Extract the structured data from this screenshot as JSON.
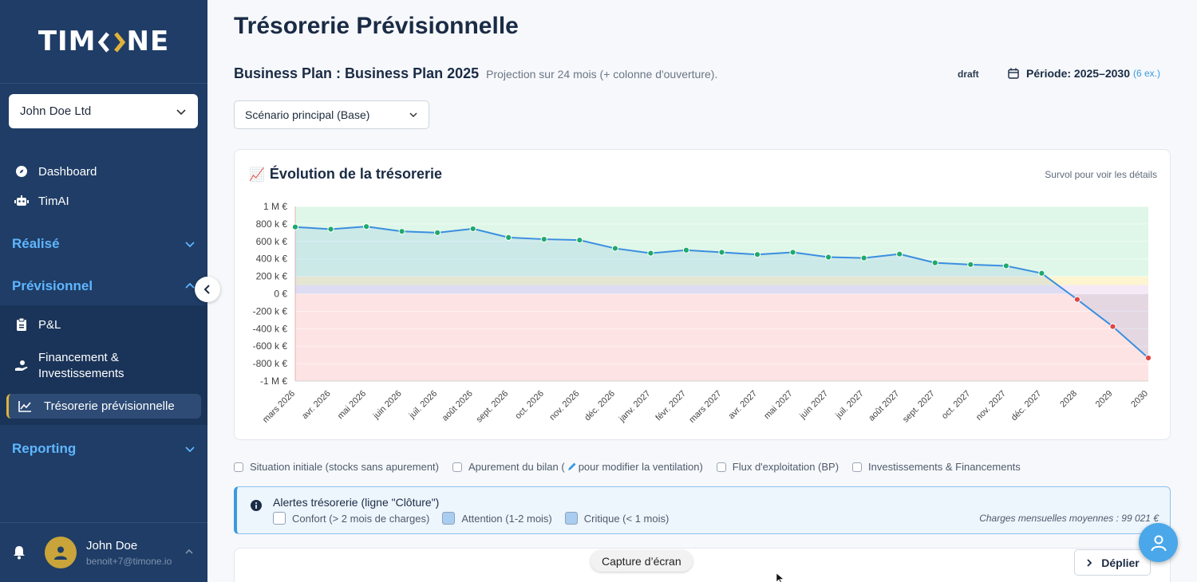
{
  "sidebar": {
    "logo_left": "TIM",
    "logo_right": "NE",
    "company": "John Doe Ltd",
    "nav": [
      {
        "label": "Dashboard",
        "icon": "compass-icon"
      },
      {
        "label": "TimAI",
        "icon": "robot-icon"
      }
    ],
    "sections": {
      "realise": "Réalisé",
      "previsionnel": "Prévisionnel",
      "reporting": "Reporting"
    },
    "sub_items": [
      {
        "label": "P&L",
        "icon": "clipboard-icon"
      },
      {
        "label": "Financement &",
        "label2": "Investissements",
        "icon": "hand-money-icon"
      },
      {
        "label": "Trésorerie prévisionnelle",
        "icon": "line-chart-icon"
      }
    ],
    "user": {
      "name": "John Doe",
      "email": "benoit+7@timone.io"
    }
  },
  "header": {
    "title": "Trésorerie Prévisionnelle",
    "bp_title": "Business Plan : Business Plan 2025",
    "bp_sub": "Projection sur 24 mois (+ colonne d'ouverture).",
    "status": "draft",
    "periode_label": "Période: 2025–2030",
    "periode_ex": "(6 ex.)"
  },
  "scenario": {
    "selected": "Scénario principal (Base)"
  },
  "chart_card": {
    "title": "Évolution de la trésorerie",
    "title_icon": "📈",
    "hint": "Survol pour voir les détails"
  },
  "chart_data": {
    "type": "line",
    "x": [
      "mars 2026",
      "avr. 2026",
      "mai 2026",
      "juin 2026",
      "juil. 2026",
      "août 2026",
      "sept. 2026",
      "oct. 2026",
      "nov. 2026",
      "déc. 2026",
      "janv. 2027",
      "févr. 2027",
      "mars 2027",
      "avr. 2027",
      "mai 2027",
      "juin 2027",
      "juil. 2027",
      "août 2027",
      "sept. 2027",
      "oct. 2027",
      "nov. 2027",
      "déc. 2027",
      "2028",
      "2029",
      "2030"
    ],
    "series": [
      {
        "values": [
          765,
          740,
          770,
          715,
          700,
          745,
          645,
          625,
          615,
          520,
          465,
          500,
          475,
          450,
          475,
          420,
          410,
          455,
          355,
          335,
          320,
          235,
          -65,
          -375,
          -735
        ]
      }
    ],
    "yticks": [
      "1 M €",
      "800 k €",
      "600 k €",
      "400 k €",
      "200 k €",
      "0 €",
      "-200 k €",
      "-400 k €",
      "-600 k €",
      "-800 k €",
      "-1 M €"
    ],
    "ylim": [
      -1000,
      1000
    ],
    "unit": "k €",
    "zones": [
      {
        "from": 200,
        "to": 1000,
        "color": "#dff7e8"
      },
      {
        "from": 100,
        "to": 200,
        "color": "#fdf4d0"
      },
      {
        "from": -1000,
        "to": 0,
        "color": "#fde3e3"
      }
    ],
    "zone_100_0_color": "#f5e9f5",
    "line_color": "#3b8ee0",
    "positive_point_color": "#1faa6a",
    "negative_point_color": "#e04545",
    "grid": true
  },
  "filters": [
    "Situation initiale (stocks sans apurement)",
    "Apurement du bilan (",
    "pour modifier la ventilation)",
    "Flux d'exploitation (BP)",
    "Investissements & Financements"
  ],
  "alert": {
    "title": "Alertes trésorerie (ligne \"Clôture\")",
    "legend": [
      {
        "label": "Confort (> 2 mois de charges)",
        "color": "#ffffff"
      },
      {
        "label": "Attention (1-2 mois)",
        "color": "#a9cdf0"
      },
      {
        "label": "Critique (< 1 mois)",
        "color": "#a9cdf0"
      }
    ],
    "avg": "Charges mensuelles moyennes : 99 021 €"
  },
  "bottom": {
    "deplier": "Déplier",
    "capture": "Capture d’écran"
  }
}
